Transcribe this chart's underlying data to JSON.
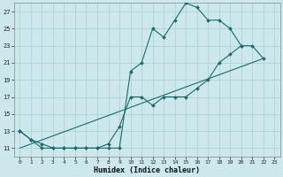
{
  "xlabel": "Humidex (Indice chaleur)",
  "bg_color": "#cce8ec",
  "grid_color": "#aacdd4",
  "line_color": "#1a6b6b",
  "x_ticks": [
    0,
    1,
    2,
    3,
    4,
    5,
    6,
    7,
    8,
    9,
    10,
    11,
    12,
    13,
    14,
    15,
    16,
    17,
    18,
    19,
    20,
    21,
    22,
    23
  ],
  "y_ticks": [
    11,
    13,
    15,
    17,
    19,
    21,
    23,
    25,
    27
  ],
  "xlim": [
    -0.5,
    23.5
  ],
  "ylim": [
    10.0,
    28.0
  ],
  "line1_x": [
    0,
    1,
    2,
    3,
    4,
    5,
    6,
    7,
    8,
    9,
    10,
    11,
    12,
    13,
    14,
    15,
    16,
    17,
    18,
    19,
    20,
    21,
    22
  ],
  "line1_y": [
    13,
    12,
    11.5,
    11,
    11,
    11,
    11,
    11,
    11,
    11,
    20,
    21,
    25,
    24,
    26,
    28,
    27.5,
    26,
    26,
    25,
    23,
    23,
    21.5
  ],
  "line2_x": [
    0,
    1,
    2,
    3,
    4,
    5,
    6,
    7,
    8,
    9,
    10,
    11,
    12,
    13,
    14,
    15,
    16,
    17,
    18,
    19,
    20
  ],
  "line2_y": [
    13,
    12,
    11,
    11,
    11,
    11,
    11,
    11,
    11.5,
    13.5,
    17,
    17,
    16,
    17,
    17,
    17,
    18,
    19,
    21,
    22,
    23
  ],
  "line3_x": [
    0,
    22
  ],
  "line3_y": [
    11,
    21.5
  ]
}
